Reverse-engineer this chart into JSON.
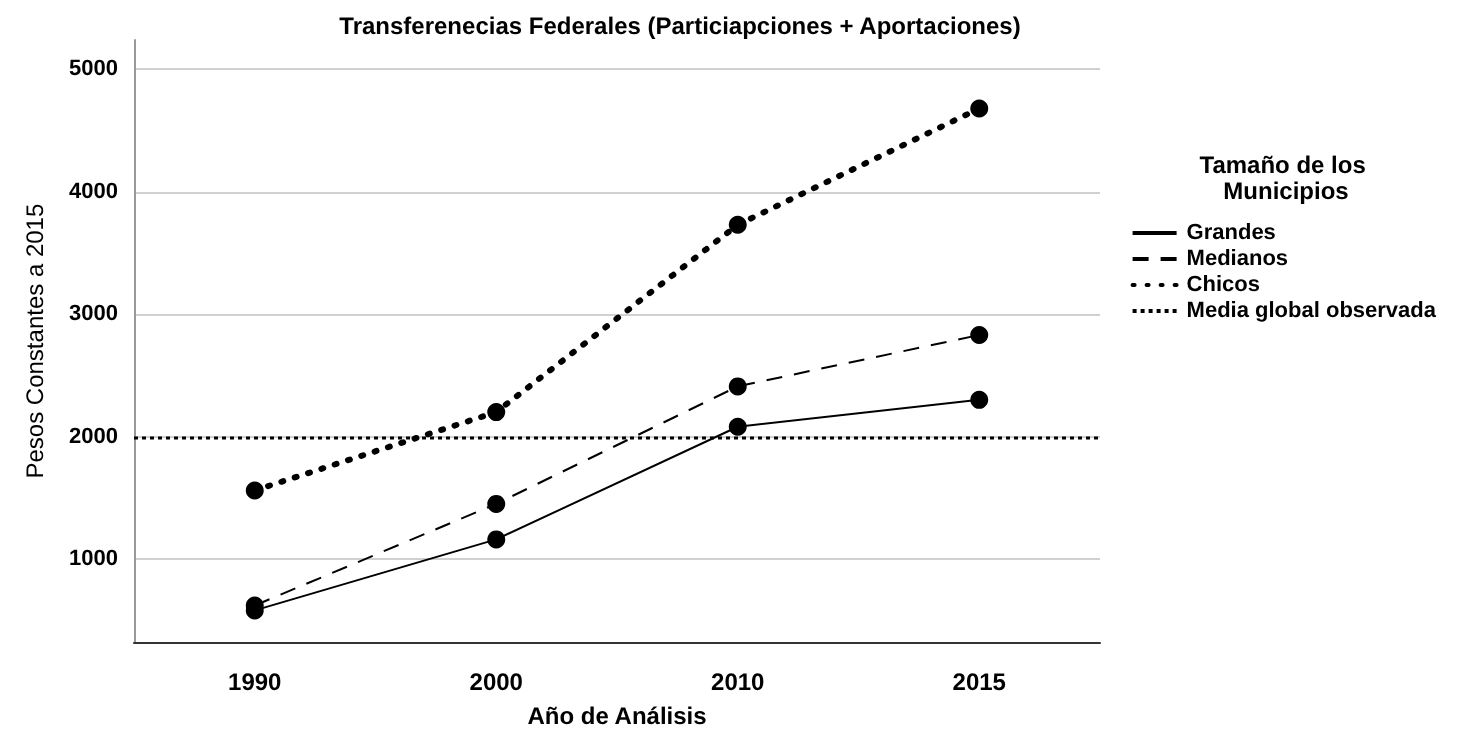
{
  "chart_data": {
    "type": "line",
    "title": "Transferenecias Federales (Particiapciones + Aportaciones)",
    "xlabel": "Año de Análisis",
    "ylabel": "Pesos Constantes a 2015",
    "legend_title": "Tamaño de los Municipios",
    "categories": [
      "1990",
      "2000",
      "2010",
      "2015"
    ],
    "series": [
      {
        "name": "Grandes",
        "color": "#000000",
        "line_style": "solid",
        "values": [
          580,
          1160,
          2080,
          2300
        ]
      },
      {
        "name": "Medianos",
        "color": "#000000",
        "line_style": "dashed",
        "values": [
          620,
          1450,
          2410,
          2830
        ]
      },
      {
        "name": "Chicos",
        "color": "#000000",
        "line_style": "dotted",
        "values": [
          1560,
          2200,
          3730,
          4680
        ]
      }
    ],
    "ref_lines": [
      {
        "axis": "y",
        "value": 2000,
        "label": "Media global observada",
        "color": "#000000",
        "line_style": "dotted"
      }
    ],
    "ylim": [
      320,
      5240
    ],
    "yticks": [
      1000,
      2000,
      3000,
      4000,
      5000
    ],
    "grid": "y",
    "legend": "right",
    "marker": "circle"
  }
}
